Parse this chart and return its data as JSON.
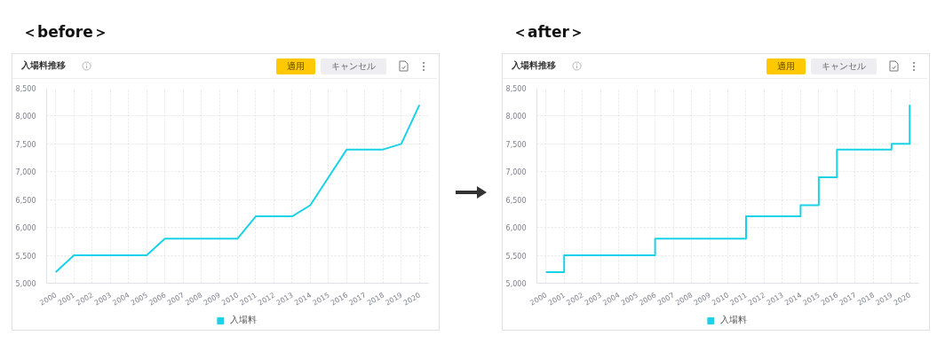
{
  "chart_data": [
    {
      "type": "line",
      "title": "入場料推移",
      "annotations": [
        "＜before＞",
        "適用",
        "キャンセル"
      ],
      "categories": [
        "2000",
        "2001",
        "2002",
        "2003",
        "2004",
        "2005",
        "2006",
        "2007",
        "2008",
        "2009",
        "2010",
        "2011",
        "2012",
        "2013",
        "2014",
        "2015",
        "2016",
        "2017",
        "2018",
        "2019",
        "2020"
      ],
      "series": [
        {
          "name": "入場料",
          "color": "#1ad2e8",
          "values": [
            5200,
            5500,
            5500,
            5500,
            5500,
            5500,
            5800,
            5800,
            5800,
            5800,
            5800,
            6200,
            6200,
            6200,
            6400,
            6900,
            7400,
            7400,
            7400,
            7500,
            8200
          ]
        }
      ],
      "ylim": [
        5000,
        8500
      ],
      "yticks": [
        {
          "value": 5000,
          "label": "5,000"
        },
        {
          "value": 5500,
          "label": "5,500"
        },
        {
          "value": 6000,
          "label": "6,000"
        },
        {
          "value": 6500,
          "label": "6,500"
        },
        {
          "value": 7000,
          "label": "7,000"
        },
        {
          "value": 7500,
          "label": "7,500"
        },
        {
          "value": 8000,
          "label": "8,000"
        },
        {
          "value": 8500,
          "label": "8,500"
        }
      ],
      "grid": true,
      "legend": "bottom",
      "line_style": "solid"
    },
    {
      "type": "step",
      "title": "入場料推移",
      "annotations": [
        "＜after＞",
        "適用",
        "キャンセル"
      ],
      "categories": [
        "2000",
        "2001",
        "2002",
        "2003",
        "2004",
        "2005",
        "2006",
        "2007",
        "2008",
        "2009",
        "2010",
        "2011",
        "2012",
        "2013",
        "2014",
        "2015",
        "2016",
        "2017",
        "2018",
        "2019",
        "2020"
      ],
      "series": [
        {
          "name": "入場料",
          "color": "#1ad2e8",
          "values": [
            5200,
            5500,
            5500,
            5500,
            5500,
            5500,
            5800,
            5800,
            5800,
            5800,
            5800,
            6200,
            6200,
            6200,
            6400,
            6900,
            7400,
            7400,
            7400,
            7500,
            8200
          ]
        }
      ],
      "ylim": [
        5000,
        8500
      ],
      "yticks": [
        {
          "value": 5000,
          "label": "5,000"
        },
        {
          "value": 5500,
          "label": "5,500"
        },
        {
          "value": 6000,
          "label": "6,000"
        },
        {
          "value": 6500,
          "label": "6,500"
        },
        {
          "value": 7000,
          "label": "7,000"
        },
        {
          "value": 7500,
          "label": "7,500"
        },
        {
          "value": 8000,
          "label": "8,000"
        },
        {
          "value": 8500,
          "label": "8,500"
        }
      ],
      "grid": true,
      "legend": "bottom",
      "line_style": "solid"
    }
  ]
}
